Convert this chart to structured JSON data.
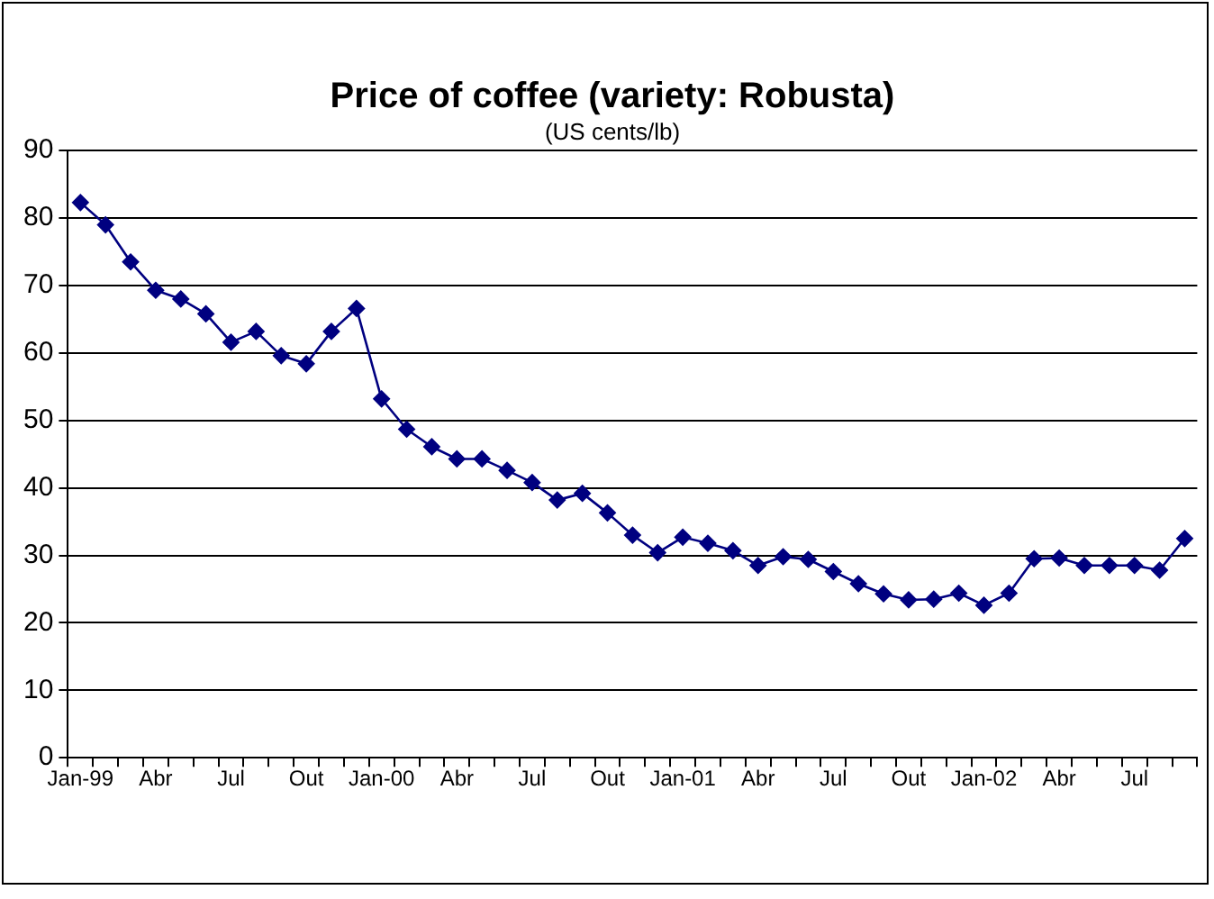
{
  "chart_data": {
    "type": "line",
    "title": "Price of coffee (variety: Robusta)",
    "subtitle": "(US cents/lb)",
    "categories": [
      "Jan-99",
      null,
      null,
      "Abr",
      null,
      null,
      "Jul",
      null,
      null,
      "Out",
      null,
      null,
      "Jan-00",
      null,
      null,
      "Abr",
      null,
      null,
      "Jul",
      null,
      null,
      "Out",
      null,
      null,
      "Jan-01",
      null,
      null,
      "Abr",
      null,
      null,
      "Jul",
      null,
      null,
      "Out",
      null,
      null,
      "Jan-02",
      null,
      null,
      "Abr",
      null,
      null,
      "Jul",
      null,
      null
    ],
    "series": [
      {
        "color": "#000080",
        "values": [
          82.3,
          79,
          73.5,
          69.3,
          68,
          65.8,
          61.6,
          63.2,
          59.6,
          58.4,
          63.2,
          66.6,
          53.2,
          48.7,
          46.1,
          44.3,
          44.3,
          42.6,
          40.8,
          38.2,
          39.2,
          36.3,
          33,
          30.4,
          32.7,
          31.8,
          30.7,
          28.5,
          29.8,
          29.4,
          27.6,
          25.8,
          24.3,
          23.4,
          23.5,
          24.4,
          22.6,
          24.4,
          29.5,
          29.6,
          28.5,
          28.5,
          28.5,
          27.8,
          32.5
        ]
      }
    ],
    "ylim": [
      0,
      90
    ],
    "yticks": [
      0,
      10,
      20,
      30,
      40,
      50,
      60,
      70,
      80,
      90
    ],
    "grid": "y",
    "legend": false,
    "marker": "diamond",
    "line_style": "solid"
  }
}
